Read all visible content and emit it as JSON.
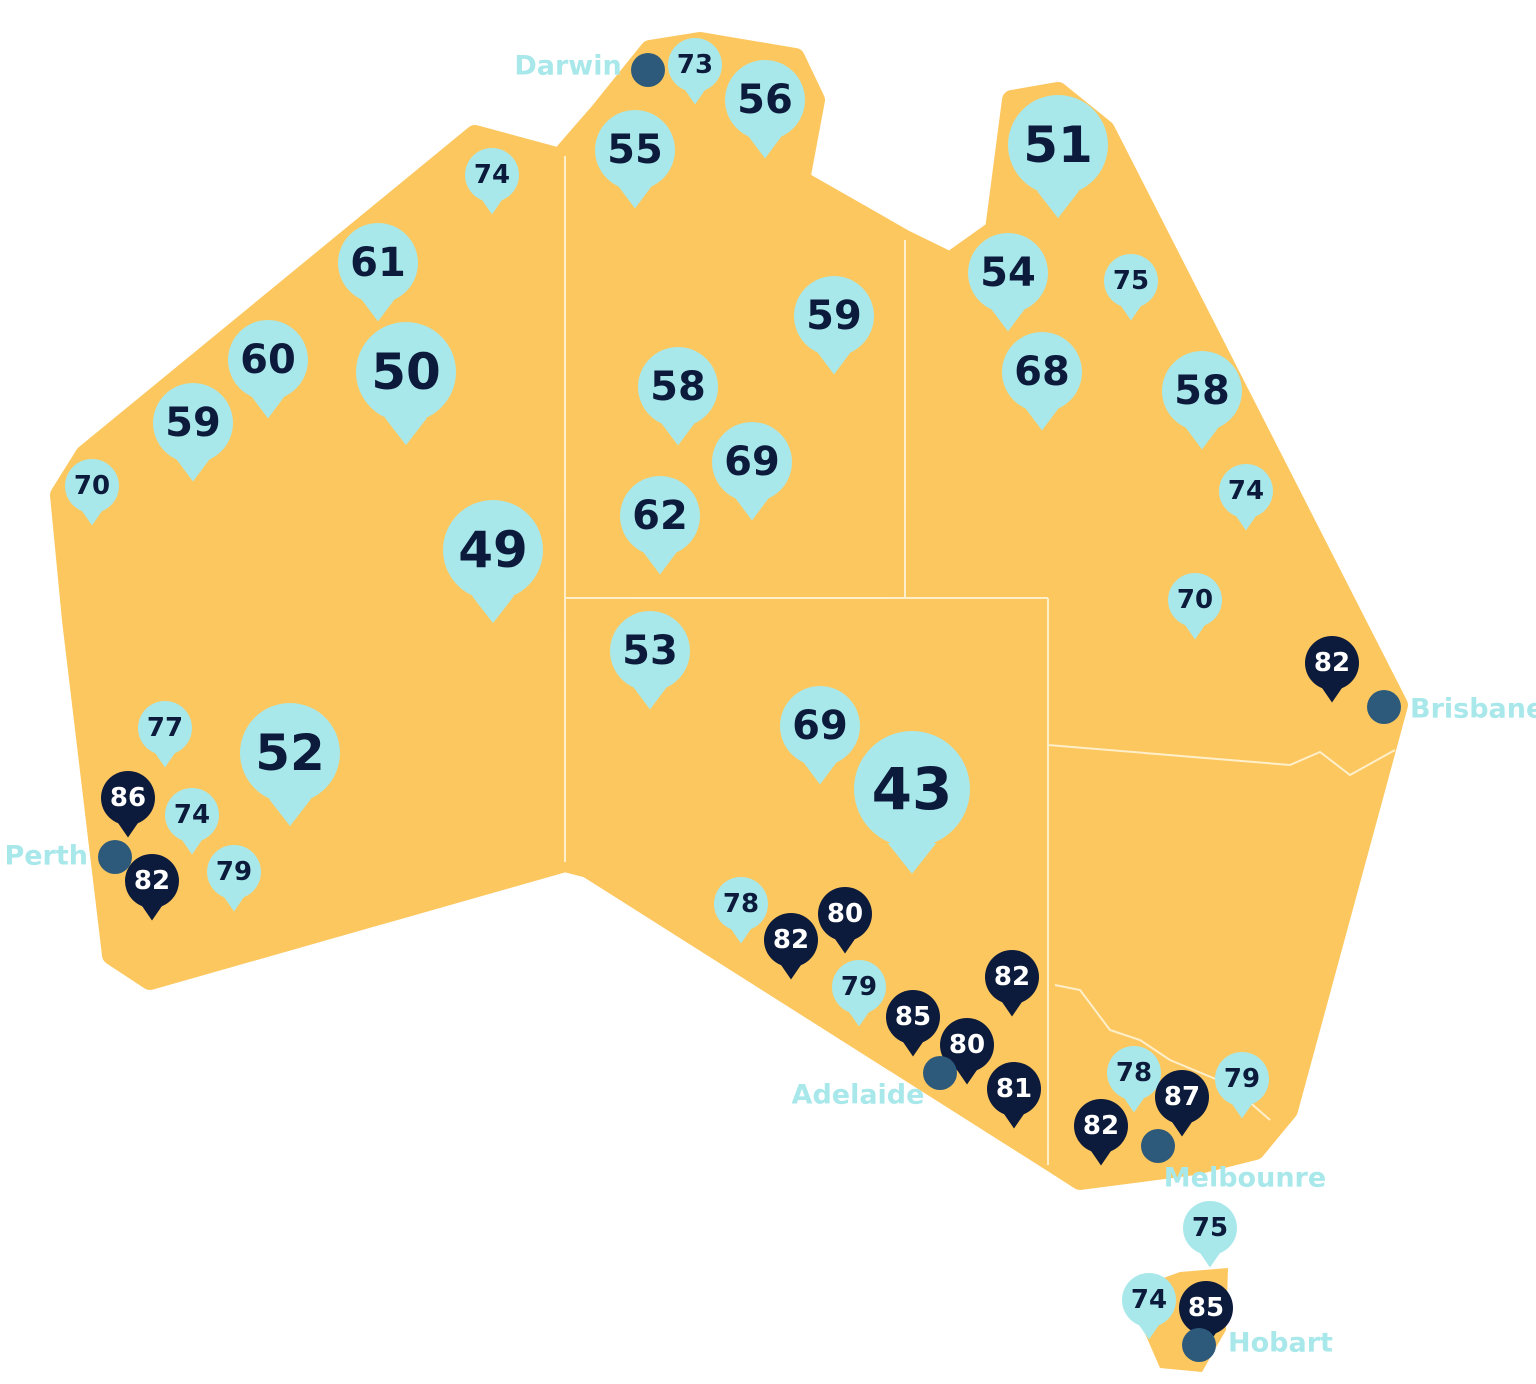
{
  "cities": [
    "Darwin",
    "Brisbane",
    "Perth",
    "Adelaide",
    "Melbounre",
    "Hobart"
  ],
  "pins": [
    73,
    56,
    55,
    74,
    51,
    61,
    54,
    75,
    59,
    60,
    50,
    68,
    58,
    58,
    59,
    69,
    70,
    74,
    62,
    49,
    70,
    53,
    82,
    69,
    77,
    52,
    43,
    86,
    74,
    82,
    79,
    78,
    80,
    82,
    82,
    79,
    85,
    80,
    81,
    78,
    87,
    79,
    82,
    75,
    74,
    85
  ]
}
